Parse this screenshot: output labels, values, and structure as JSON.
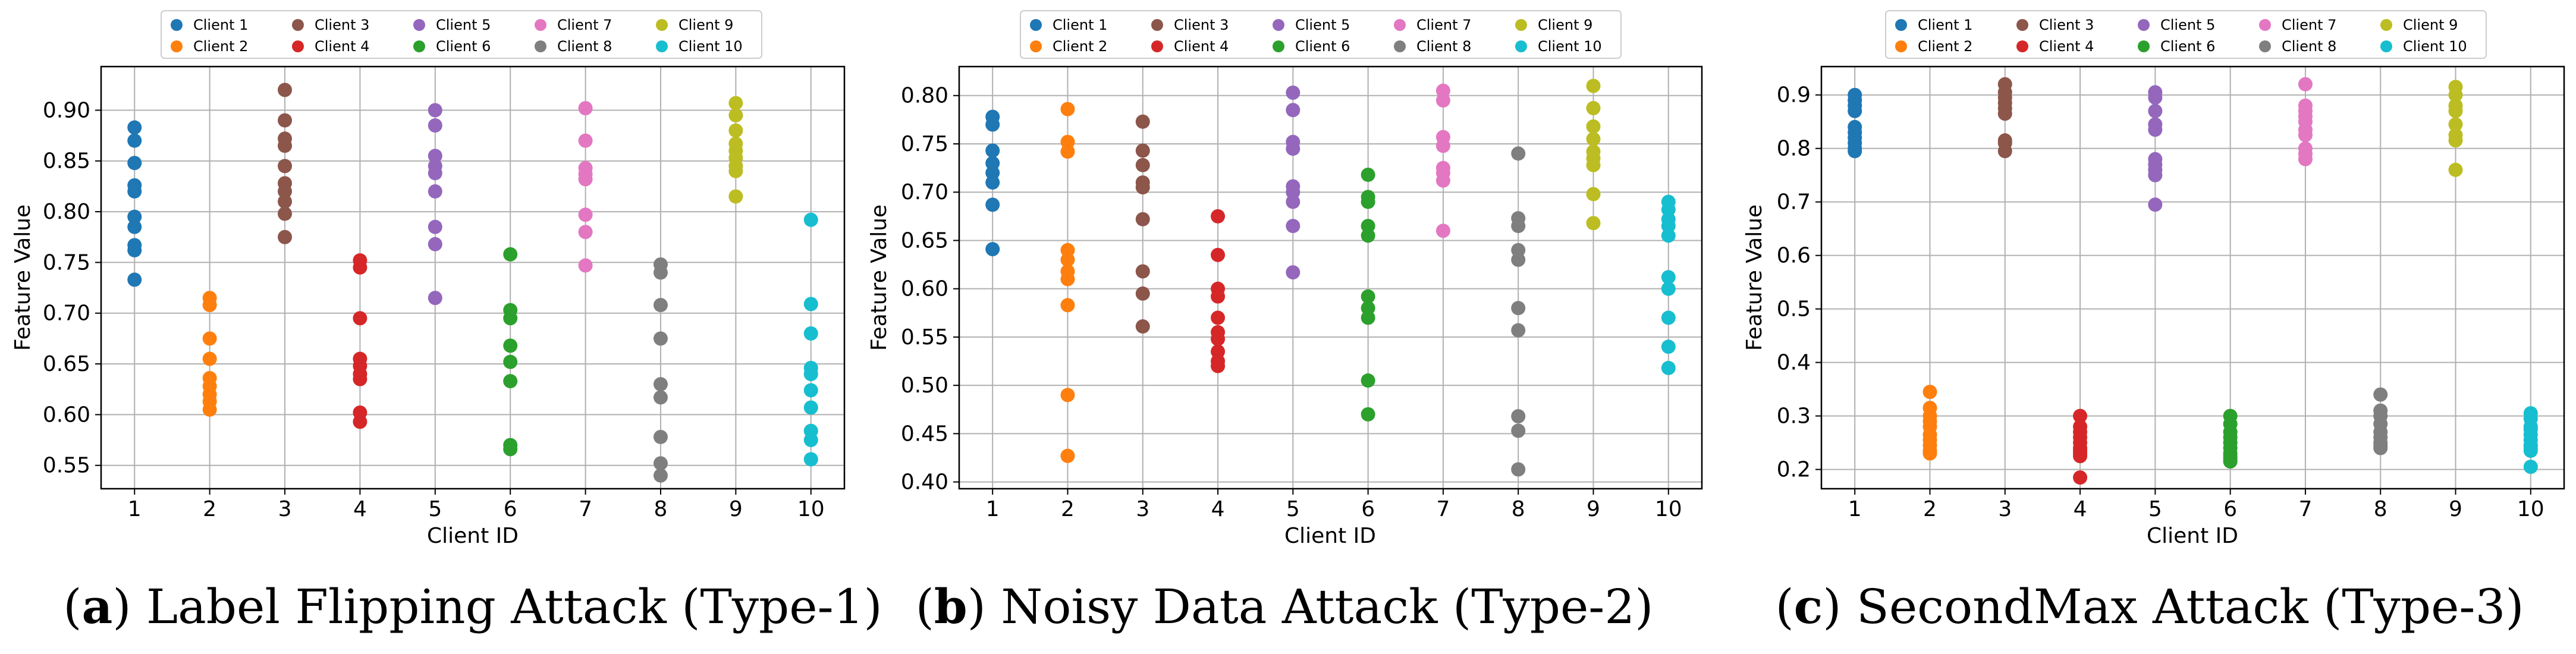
{
  "chart_data": [
    {
      "type": "scatter",
      "caption_letter": "a",
      "caption_open": "(",
      "caption_close": ")",
      "caption_text": " Label Flipping Attack (Type-1)",
      "xlabel": "Client ID",
      "ylabel": "Feature Value",
      "categories": [
        "1",
        "2",
        "3",
        "4",
        "5",
        "6",
        "7",
        "8",
        "9",
        "10"
      ],
      "yticks": [
        0.55,
        0.6,
        0.65,
        0.7,
        0.75,
        0.8,
        0.85,
        0.9
      ],
      "ytick_labels": [
        "0.55",
        "0.60",
        "0.65",
        "0.70",
        "0.75",
        "0.80",
        "0.85",
        "0.90"
      ],
      "ylim": [
        0.527,
        0.943
      ],
      "grid": true,
      "legend_position": "top-center",
      "series": [
        {
          "name": "Client 1",
          "x": 1,
          "values": [
            0.883,
            0.87,
            0.848,
            0.826,
            0.82,
            0.795,
            0.785,
            0.767,
            0.762,
            0.733
          ]
        },
        {
          "name": "Client 2",
          "x": 2,
          "values": [
            0.715,
            0.708,
            0.675,
            0.655,
            0.636,
            0.628,
            0.62,
            0.613,
            0.605
          ]
        },
        {
          "name": "Client 3",
          "x": 3,
          "values": [
            0.92,
            0.89,
            0.872,
            0.865,
            0.845,
            0.828,
            0.82,
            0.81,
            0.798,
            0.775
          ]
        },
        {
          "name": "Client 4",
          "x": 4,
          "values": [
            0.752,
            0.745,
            0.695,
            0.655,
            0.648,
            0.64,
            0.635,
            0.602,
            0.593
          ]
        },
        {
          "name": "Client 5",
          "x": 5,
          "values": [
            0.9,
            0.885,
            0.855,
            0.845,
            0.838,
            0.82,
            0.785,
            0.768,
            0.715
          ]
        },
        {
          "name": "Client 6",
          "x": 6,
          "values": [
            0.758,
            0.703,
            0.695,
            0.668,
            0.652,
            0.633,
            0.57,
            0.566
          ]
        },
        {
          "name": "Client 7",
          "x": 7,
          "values": [
            0.902,
            0.87,
            0.843,
            0.837,
            0.832,
            0.797,
            0.78,
            0.747
          ]
        },
        {
          "name": "Client 8",
          "x": 8,
          "values": [
            0.748,
            0.74,
            0.708,
            0.675,
            0.63,
            0.617,
            0.578,
            0.552,
            0.54
          ]
        },
        {
          "name": "Client 9",
          "x": 9,
          "values": [
            0.907,
            0.895,
            0.88,
            0.867,
            0.86,
            0.853,
            0.845,
            0.84,
            0.815
          ]
        },
        {
          "name": "Client 10",
          "x": 10,
          "values": [
            0.792,
            0.709,
            0.68,
            0.646,
            0.64,
            0.624,
            0.607,
            0.584,
            0.575,
            0.556
          ]
        }
      ]
    },
    {
      "type": "scatter",
      "caption_letter": "b",
      "caption_open": "(",
      "caption_close": ")",
      "caption_text": " Noisy Data Attack (Type-2)",
      "xlabel": "Client ID",
      "ylabel": "Feature Value",
      "categories": [
        "1",
        "2",
        "3",
        "4",
        "5",
        "6",
        "7",
        "8",
        "9",
        "10"
      ],
      "yticks": [
        0.4,
        0.45,
        0.5,
        0.55,
        0.6,
        0.65,
        0.7,
        0.75,
        0.8
      ],
      "ytick_labels": [
        "0.40",
        "0.45",
        "0.50",
        "0.55",
        "0.60",
        "0.65",
        "0.70",
        "0.75",
        "0.80"
      ],
      "ylim": [
        0.393,
        0.83
      ],
      "grid": true,
      "legend_position": "top-center",
      "series": [
        {
          "name": "Client 1",
          "x": 1,
          "values": [
            0.778,
            0.77,
            0.743,
            0.73,
            0.72,
            0.71,
            0.687,
            0.641
          ]
        },
        {
          "name": "Client 2",
          "x": 2,
          "values": [
            0.786,
            0.752,
            0.742,
            0.64,
            0.63,
            0.618,
            0.61,
            0.583,
            0.49,
            0.427
          ]
        },
        {
          "name": "Client 3",
          "x": 3,
          "values": [
            0.773,
            0.743,
            0.728,
            0.71,
            0.705,
            0.672,
            0.618,
            0.595,
            0.561
          ]
        },
        {
          "name": "Client 4",
          "x": 4,
          "values": [
            0.675,
            0.635,
            0.6,
            0.592,
            0.57,
            0.555,
            0.548,
            0.535,
            0.525,
            0.52
          ]
        },
        {
          "name": "Client 5",
          "x": 5,
          "values": [
            0.803,
            0.785,
            0.752,
            0.745,
            0.706,
            0.7,
            0.69,
            0.665,
            0.617
          ]
        },
        {
          "name": "Client 6",
          "x": 6,
          "values": [
            0.718,
            0.695,
            0.69,
            0.665,
            0.655,
            0.592,
            0.58,
            0.57,
            0.505,
            0.47
          ]
        },
        {
          "name": "Client 7",
          "x": 7,
          "values": [
            0.805,
            0.795,
            0.757,
            0.748,
            0.725,
            0.72,
            0.712,
            0.66
          ]
        },
        {
          "name": "Client 8",
          "x": 8,
          "values": [
            0.74,
            0.673,
            0.665,
            0.64,
            0.63,
            0.58,
            0.557,
            0.468,
            0.453,
            0.413
          ]
        },
        {
          "name": "Client 9",
          "x": 9,
          "values": [
            0.81,
            0.787,
            0.768,
            0.755,
            0.742,
            0.735,
            0.728,
            0.698,
            0.668
          ]
        },
        {
          "name": "Client 10",
          "x": 10,
          "values": [
            0.69,
            0.682,
            0.672,
            0.665,
            0.655,
            0.612,
            0.6,
            0.57,
            0.54,
            0.518
          ]
        }
      ]
    },
    {
      "type": "scatter",
      "caption_letter": "c",
      "caption_open": "(",
      "caption_close": ")",
      "caption_text": " SecondMax Attack (Type-3)",
      "xlabel": "Client ID",
      "ylabel": "Feature Value",
      "categories": [
        "1",
        "2",
        "3",
        "4",
        "5",
        "6",
        "7",
        "8",
        "9",
        "10"
      ],
      "yticks": [
        0.2,
        0.3,
        0.4,
        0.5,
        0.6,
        0.7,
        0.8,
        0.9
      ],
      "ytick_labels": [
        "0.2",
        "0.3",
        "0.4",
        "0.5",
        "0.6",
        "0.7",
        "0.8",
        "0.9"
      ],
      "ylim": [
        0.164,
        0.953
      ],
      "grid": true,
      "legend_position": "top-center",
      "series": [
        {
          "name": "Client 1",
          "x": 1,
          "values": [
            0.9,
            0.89,
            0.88,
            0.87,
            0.84,
            0.83,
            0.82,
            0.81,
            0.8,
            0.795
          ]
        },
        {
          "name": "Client 2",
          "x": 2,
          "values": [
            0.345,
            0.315,
            0.3,
            0.29,
            0.28,
            0.265,
            0.255,
            0.245,
            0.235,
            0.23
          ]
        },
        {
          "name": "Client 3",
          "x": 3,
          "values": [
            0.92,
            0.905,
            0.895,
            0.885,
            0.875,
            0.865,
            0.815,
            0.81,
            0.795
          ]
        },
        {
          "name": "Client 4",
          "x": 4,
          "values": [
            0.3,
            0.28,
            0.27,
            0.26,
            0.25,
            0.24,
            0.235,
            0.23,
            0.225,
            0.185
          ]
        },
        {
          "name": "Client 5",
          "x": 5,
          "values": [
            0.905,
            0.895,
            0.87,
            0.845,
            0.835,
            0.78,
            0.77,
            0.76,
            0.75,
            0.695
          ]
        },
        {
          "name": "Client 6",
          "x": 6,
          "values": [
            0.3,
            0.285,
            0.27,
            0.26,
            0.25,
            0.24,
            0.23,
            0.225,
            0.22,
            0.215
          ]
        },
        {
          "name": "Client 7",
          "x": 7,
          "values": [
            0.92,
            0.88,
            0.87,
            0.86,
            0.85,
            0.835,
            0.825,
            0.8,
            0.79,
            0.78
          ]
        },
        {
          "name": "Client 8",
          "x": 8,
          "values": [
            0.34,
            0.31,
            0.3,
            0.285,
            0.27,
            0.26,
            0.25,
            0.245,
            0.24
          ]
        },
        {
          "name": "Client 9",
          "x": 9,
          "values": [
            0.915,
            0.9,
            0.88,
            0.87,
            0.845,
            0.825,
            0.815,
            0.76
          ]
        },
        {
          "name": "Client 10",
          "x": 10,
          "values": [
            0.305,
            0.295,
            0.28,
            0.275,
            0.265,
            0.255,
            0.245,
            0.24,
            0.235,
            0.205
          ]
        }
      ]
    }
  ],
  "legend": {
    "entries": [
      "Client 1",
      "Client 2",
      "Client 3",
      "Client 4",
      "Client 5",
      "Client 6",
      "Client 7",
      "Client 8",
      "Client 9",
      "Client 10"
    ],
    "colors": [
      "#1f77b4",
      "#ff7f0e",
      "#8c564b",
      "#d62728",
      "#9467bd",
      "#2ca02c",
      "#e377c2",
      "#7f7f7f",
      "#bcbd22",
      "#17becf"
    ]
  },
  "style": {
    "grid_color": "#b0b0b0",
    "axis_color": "#000000"
  }
}
